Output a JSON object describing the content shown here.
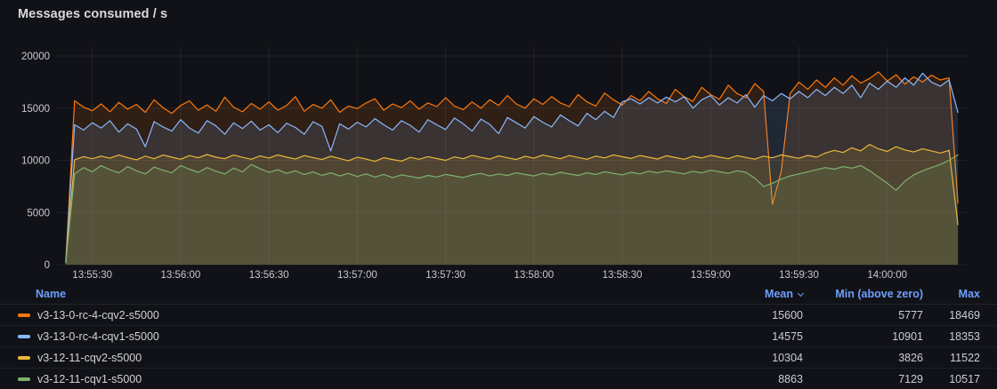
{
  "panel": {
    "title": "Messages consumed / s"
  },
  "colors": {
    "background": "#111217",
    "grid": "rgba(204,204,220,0.09)",
    "axis_text": "#c8c9d0",
    "title_text": "#d8d9da",
    "legend_header_link": "#6e9fff",
    "row_border": "rgba(204,204,220,0.08)"
  },
  "legend": {
    "headers": {
      "name": "Name",
      "mean": "Mean",
      "min": "Min (above zero)",
      "max": "Max"
    },
    "sorted_by": "Mean",
    "sort_direction": "desc"
  },
  "chart_data": {
    "type": "area",
    "title": "Messages consumed / s",
    "grid": true,
    "legend_position": "bottom-table",
    "x_axis": {
      "tick_labels": [
        "13:55:30",
        "13:56:00",
        "13:56:30",
        "13:57:00",
        "13:57:30",
        "13:58:00",
        "13:58:30",
        "13:59:00",
        "13:59:30",
        "14:00:00"
      ],
      "tick_times_s": [
        10,
        40,
        70,
        100,
        130,
        160,
        190,
        220,
        250,
        280
      ],
      "range_s": [
        -2,
        307
      ],
      "t0_label": "13:55:20"
    },
    "y_axis": {
      "ticks": [
        0,
        5000,
        10000,
        15000,
        20000
      ],
      "range": [
        0,
        20000
      ]
    },
    "sample_t0_s": 1,
    "sample_dt_s": 3,
    "fill_opacity": 0.13,
    "series": [
      {
        "name": "v3-13-0-rc-4-cqv2-s5000",
        "color": "#FF780A",
        "mean": 15600,
        "min_above_zero": 5777,
        "max": 18469,
        "values": [
          300,
          15700,
          15100,
          14750,
          15400,
          14650,
          15550,
          14900,
          15350,
          14600,
          15800,
          15050,
          14500,
          15250,
          15700,
          14800,
          15300,
          14700,
          16050,
          15100,
          14650,
          15450,
          14900,
          15600,
          14800,
          15250,
          16100,
          14700,
          15350,
          15000,
          15800,
          14600,
          15200,
          14950,
          15500,
          15900,
          14800,
          15400,
          15050,
          15700,
          14900,
          15500,
          15150,
          16000,
          15200,
          14850,
          15600,
          15000,
          15800,
          15250,
          16200,
          15400,
          15000,
          15900,
          15350,
          16100,
          15500,
          15150,
          16300,
          15600,
          15200,
          16450,
          15800,
          15300,
          16200,
          15700,
          16600,
          15900,
          15450,
          16800,
          16100,
          15650,
          17000,
          16300,
          15850,
          17200,
          16400,
          16000,
          17350,
          16600,
          5777,
          8900,
          16400,
          17500,
          16800,
          17700,
          17000,
          17900,
          17200,
          18100,
          17400,
          17850,
          18469,
          17600,
          18200,
          17300,
          18000,
          17500,
          18150,
          17700,
          17900,
          5900
        ]
      },
      {
        "name": "v3-13-0-rc-4-cqv1-s5000",
        "color": "#8AB8FF",
        "mean": 14575,
        "min_above_zero": 10901,
        "max": 18353,
        "values": [
          250,
          13400,
          12900,
          13600,
          13100,
          13800,
          12700,
          13500,
          13000,
          11300,
          13700,
          13200,
          12800,
          13900,
          13100,
          12600,
          13800,
          13300,
          12500,
          13600,
          13050,
          13750,
          12900,
          13400,
          12650,
          13550,
          13150,
          12500,
          13700,
          13250,
          10901,
          13500,
          13000,
          13650,
          13200,
          14000,
          13400,
          12900,
          13800,
          13350,
          12700,
          13900,
          13400,
          12950,
          14050,
          13500,
          12800,
          13950,
          13450,
          12550,
          14100,
          13600,
          13100,
          14200,
          13650,
          13200,
          14350,
          13800,
          13300,
          14500,
          13900,
          14700,
          14100,
          15600,
          15900,
          15400,
          16000,
          15500,
          16050,
          15600,
          16100,
          15000,
          15800,
          16200,
          15300,
          16000,
          15500,
          16300,
          15100,
          16200,
          15700,
          16400,
          15900,
          16600,
          16000,
          16800,
          16200,
          17000,
          16400,
          17200,
          16000,
          17400,
          16800,
          17600,
          17000,
          17900,
          17200,
          18353,
          17500,
          17100,
          17700,
          14600
        ]
      },
      {
        "name": "v3-12-11-cqv2-s5000",
        "color": "#EAB839",
        "mean": 10304,
        "min_above_zero": 3826,
        "max": 11522,
        "values": [
          200,
          10050,
          10350,
          10150,
          10400,
          10200,
          10500,
          10250,
          10050,
          10400,
          10150,
          10500,
          10300,
          10100,
          10450,
          10250,
          10550,
          10300,
          10150,
          10500,
          10280,
          10100,
          10420,
          10220,
          10520,
          10300,
          10120,
          10450,
          10260,
          10080,
          10380,
          10180,
          9950,
          10300,
          10120,
          9900,
          10250,
          10080,
          9920,
          10280,
          10100,
          10350,
          10170,
          10000,
          10320,
          10150,
          10480,
          10280,
          10120,
          10420,
          10240,
          10080,
          10380,
          10200,
          10500,
          10320,
          10150,
          10450,
          10270,
          10100,
          10400,
          10230,
          10520,
          10340,
          10180,
          10460,
          10290,
          10130,
          10430,
          10260,
          10100,
          10390,
          10220,
          10480,
          10310,
          10150,
          10440,
          10270,
          10110,
          10400,
          10240,
          10520,
          10350,
          10190,
          10470,
          10300,
          10700,
          10950,
          10750,
          11200,
          10900,
          11522,
          11100,
          10850,
          11300,
          11000,
          10800,
          11100,
          10900,
          10700,
          10950,
          3826
        ]
      },
      {
        "name": "v3-12-11-cqv1-s5000",
        "color": "#7EB26D",
        "mean": 8863,
        "min_above_zero": 7129,
        "max": 10517,
        "values": [
          180,
          8700,
          9300,
          8900,
          9500,
          9100,
          8800,
          9400,
          9000,
          8700,
          9350,
          9050,
          8800,
          9500,
          9150,
          8850,
          9300,
          8950,
          8700,
          9250,
          8900,
          9600,
          9200,
          8850,
          9100,
          8750,
          9000,
          8650,
          8900,
          8550,
          8800,
          8500,
          8750,
          8450,
          8700,
          8400,
          8650,
          8350,
          8600,
          8450,
          8300,
          8550,
          8400,
          8650,
          8500,
          8350,
          8600,
          8750,
          8500,
          8700,
          8550,
          8800,
          8650,
          8500,
          8750,
          8600,
          8850,
          8700,
          8550,
          8800,
          8650,
          8900,
          8750,
          8600,
          8850,
          8700,
          8950,
          8800,
          9000,
          8850,
          8700,
          8950,
          8800,
          9050,
          8900,
          8750,
          9000,
          8850,
          8300,
          7500,
          7800,
          8200,
          8500,
          8700,
          8900,
          9100,
          9300,
          9150,
          9400,
          9250,
          9500,
          9000,
          8400,
          7800,
          7129,
          8000,
          8600,
          9000,
          9300,
          9600,
          10000,
          10517
        ]
      }
    ]
  }
}
